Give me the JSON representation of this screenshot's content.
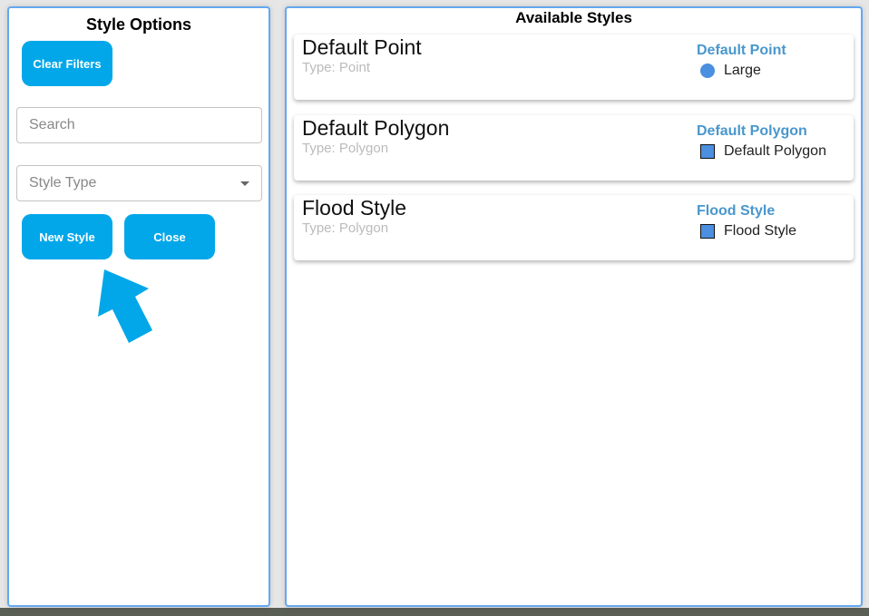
{
  "left_panel": {
    "title": "Style Options",
    "clear_filters": "Clear Filters",
    "search_placeholder": "Search",
    "style_type_placeholder": "Style Type",
    "new_style": "New Style",
    "close": "Close"
  },
  "right_panel": {
    "title": "Available Styles",
    "styles": [
      {
        "name": "Default Point",
        "type": "Type: Point",
        "legend_title": "Default Point",
        "legend_label": "Large",
        "symbol": "circle",
        "color": "#4a8fe0"
      },
      {
        "name": "Default Polygon",
        "type": "Type: Polygon",
        "legend_title": "Default Polygon",
        "legend_label": "Default Polygon",
        "symbol": "square",
        "color": "#4a8fe0"
      },
      {
        "name": "Flood Style",
        "type": "Type: Polygon",
        "legend_title": "Flood Style",
        "legend_label": "Flood Style",
        "symbol": "square",
        "color": "#4a8fe0"
      }
    ]
  },
  "colors": {
    "accent": "#02a7e9",
    "border": "#64a8f0",
    "legend_title": "#4a97cc"
  }
}
